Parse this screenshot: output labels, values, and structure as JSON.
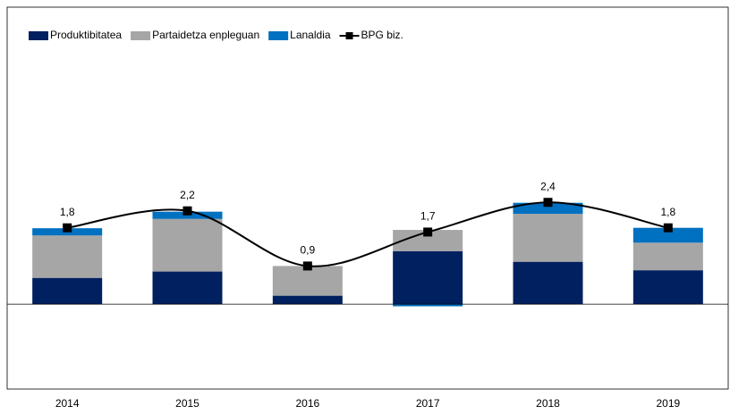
{
  "chart_data": {
    "type": "bar",
    "categories": [
      "2014",
      "2015",
      "2016",
      "2017",
      "2018",
      "2019"
    ],
    "series": [
      {
        "name": "Produktibitatea",
        "color": "#002060",
        "values": [
          0.62,
          0.77,
          0.2,
          1.25,
          1.0,
          0.8
        ]
      },
      {
        "name": "Partaidetza enpleguan",
        "color": "#a6a6a6",
        "values": [
          1.0,
          1.24,
          0.7,
          0.5,
          1.13,
          0.65
        ]
      },
      {
        "name": "Lanaldia",
        "color": "#0070c0",
        "values": [
          0.17,
          0.17,
          0.0,
          -0.05,
          0.26,
          0.35
        ]
      }
    ],
    "line": {
      "name": "BPG biz.",
      "color": "#000000",
      "values": [
        1.8,
        2.2,
        0.9,
        1.7,
        2.4,
        1.8
      ],
      "value_labels": [
        "1,8",
        "2,2",
        "0,9",
        "1,7",
        "2,4",
        "1,8"
      ]
    },
    "ylim": [
      -2,
      7
    ]
  }
}
